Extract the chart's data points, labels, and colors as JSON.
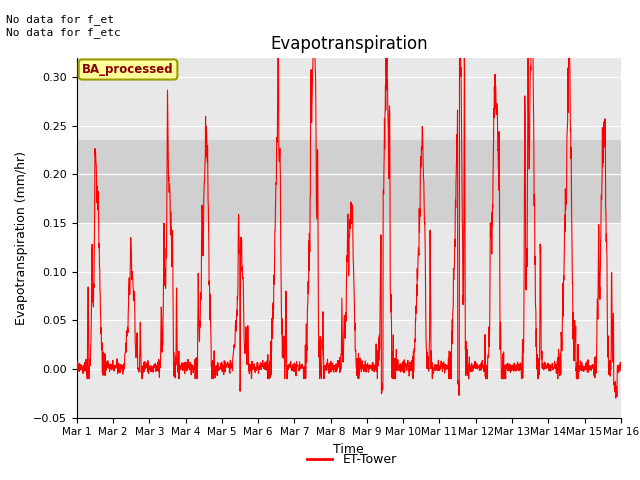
{
  "title": "Evapotranspiration",
  "xlabel": "Time",
  "ylabel": "Evapotranspiration (mm/hr)",
  "ylim": [
    -0.05,
    0.32
  ],
  "yticks": [
    -0.05,
    0.0,
    0.05,
    0.1,
    0.15,
    0.2,
    0.25,
    0.3
  ],
  "xtick_labels": [
    "Mar 1",
    "Mar 2",
    "Mar 3",
    "Mar 4",
    "Mar 5",
    "Mar 6",
    "Mar 7",
    "Mar 8",
    "Mar 9",
    "Mar 10",
    "Mar 11",
    "Mar 12",
    "Mar 13",
    "Mar 14",
    "Mar 15",
    "Mar 16"
  ],
  "line_color": "#FF0000",
  "line_width": 0.8,
  "background_color": "#FFFFFF",
  "plot_bg_color": "#E8E8E8",
  "shaded_band_low": 0.15,
  "shaded_band_high": 0.235,
  "shaded_band_color": "#D0D0D0",
  "legend_label": "ET-Tower",
  "legend_line_color": "#FF0000",
  "annotation_text": "No data for f_et\nNo data for f_etc",
  "box_label": "BA_processed",
  "box_facecolor": "#FFFF99",
  "box_edgecolor": "#999900",
  "title_fontsize": 12,
  "axis_fontsize": 9,
  "tick_fontsize": 8
}
